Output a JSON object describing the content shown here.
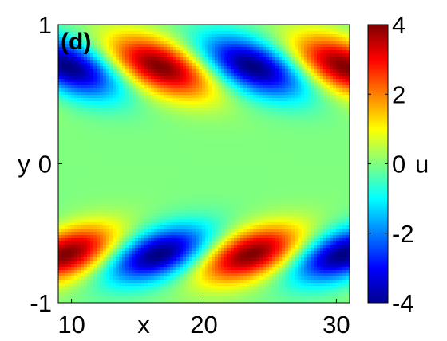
{
  "chart_data": {
    "type": "heatmap",
    "panel_label": "(d)",
    "xlabel": "x",
    "ylabel": "y",
    "xlim": [
      9,
      31
    ],
    "ylim": [
      -1,
      1
    ],
    "x_ticks": [
      {
        "value": 10,
        "label": "10"
      },
      {
        "value": 20,
        "label": "20"
      },
      {
        "value": 30,
        "label": "30"
      }
    ],
    "y_ticks": [
      {
        "value": -1,
        "label": "-1"
      },
      {
        "value": 0,
        "label": "0"
      },
      {
        "value": 1,
        "label": "1"
      }
    ],
    "colorbar": {
      "label": "u",
      "range": [
        -4,
        4
      ],
      "colormap": "jet",
      "ticks": [
        {
          "value": 4,
          "label": "4"
        },
        {
          "value": 2,
          "label": "2"
        },
        {
          "value": 0,
          "label": "0"
        },
        {
          "value": -2,
          "label": "-2"
        },
        {
          "value": -4,
          "label": "-4"
        }
      ]
    },
    "field": {
      "description_of_pattern": "wave packets in upper and lower halves with oblique phase lines",
      "amplitude": 4.0,
      "wavelength_x": 14.0,
      "upper_band": {
        "center_y": 0.7,
        "width_y": 0.22,
        "phase_slope": 9.0
      },
      "lower_band": {
        "center_y": -0.65,
        "width_y": 0.2,
        "phase_slope": -9.0
      }
    }
  }
}
